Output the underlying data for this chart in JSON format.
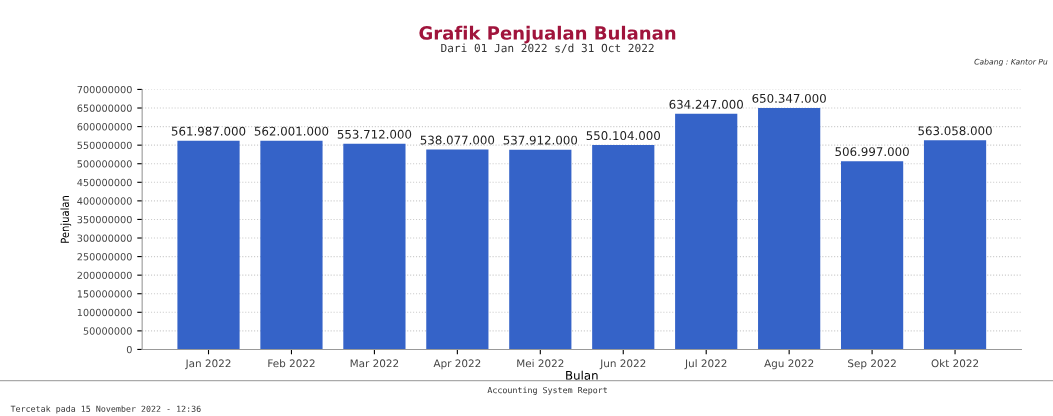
{
  "chart_data": {
    "type": "bar",
    "title": "Grafik Penjualan Bulanan",
    "subtitle": "Dari 01 Jan 2022 s/d 31 Oct 2022",
    "xlabel": "Bulan",
    "ylabel": "Penjualan",
    "categories": [
      "Jan 2022",
      "Feb 2022",
      "Mar 2022",
      "Apr 2022",
      "Mei 2022",
      "Jun 2022",
      "Jul 2022",
      "Agu 2022",
      "Sep 2022",
      "Okt 2022"
    ],
    "values": [
      561987000,
      562001000,
      553712000,
      538077000,
      537912000,
      550104000,
      634247000,
      650347000,
      506997000,
      563058000
    ],
    "value_labels": [
      "561.987.000",
      "562.001.000",
      "553.712.000",
      "538.077.000",
      "537.912.000",
      "550.104.000",
      "634.247.000",
      "650.347.000",
      "506.997.000",
      "563.058.000"
    ],
    "color": "#3563c8",
    "ylim": [
      0,
      700000000
    ],
    "yticks": [
      0,
      50000000,
      100000000,
      150000000,
      200000000,
      250000000,
      300000000,
      350000000,
      400000000,
      450000000,
      500000000,
      550000000,
      600000000,
      650000000,
      700000000
    ],
    "grid": "y",
    "annotations": [
      "Cabang : Kantor Pu",
      "Accounting System Report",
      "Tercetak pada 15 November 2022 - 12:36"
    ]
  }
}
